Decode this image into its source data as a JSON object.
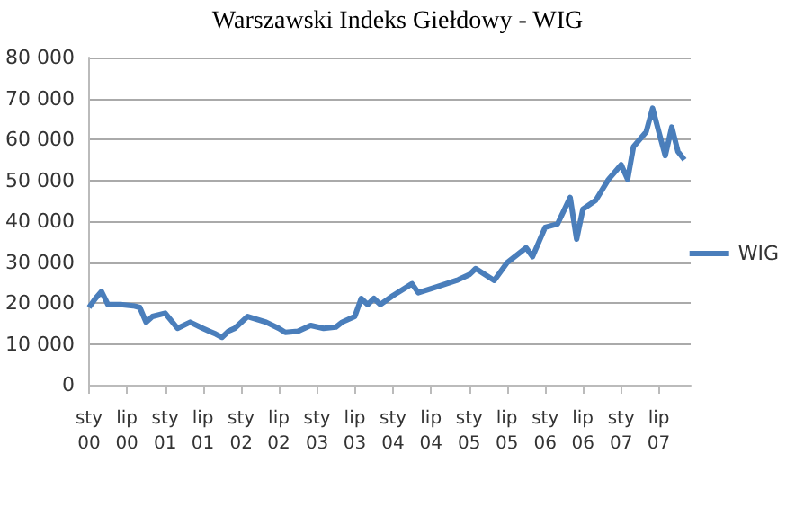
{
  "chart_data": {
    "type": "line",
    "title": "Warszawski Indeks Giełdowy - WIG",
    "series": [
      {
        "name": "WIG",
        "color": "#4a7ebb",
        "x": [
          "2000-01",
          "2000-02",
          "2000-03",
          "2000-04",
          "2000-06",
          "2000-08",
          "2000-09",
          "2000-10",
          "2000-11",
          "2001-01",
          "2001-03",
          "2001-05",
          "2001-07",
          "2001-08",
          "2001-09",
          "2001-10",
          "2001-11",
          "2001-12",
          "2002-02",
          "2002-05",
          "2002-07",
          "2002-08",
          "2002-10",
          "2002-12",
          "2003-02",
          "2003-04",
          "2003-05",
          "2003-07",
          "2003-08",
          "2003-09",
          "2003-10",
          "2003-11",
          "2004-01",
          "2004-04",
          "2004-05",
          "2004-08",
          "2004-11",
          "2005-01",
          "2005-02",
          "2005-05",
          "2005-07",
          "2005-10",
          "2005-11",
          "2006-01",
          "2006-03",
          "2006-05",
          "2006-06",
          "2006-07",
          "2006-09",
          "2006-11",
          "2007-01",
          "2007-02",
          "2007-03",
          "2007-05",
          "2007-06",
          "2007-07",
          "2007-08",
          "2007-09",
          "2007-10",
          "2007-11"
        ],
        "values": [
          18900,
          21100,
          22800,
          19600,
          19600,
          19300,
          18900,
          15300,
          16700,
          17500,
          13800,
          15300,
          13800,
          13100,
          12400,
          11600,
          13100,
          13800,
          16700,
          15300,
          13800,
          12800,
          13100,
          14500,
          13800,
          14100,
          15300,
          16700,
          21100,
          19600,
          21100,
          19600,
          21800,
          24700,
          22500,
          24000,
          25500,
          26900,
          28400,
          25500,
          29800,
          33500,
          31300,
          38500,
          39300,
          45800,
          35600,
          42900,
          45100,
          50200,
          53800,
          50200,
          58200,
          61800,
          67600,
          61800,
          56000,
          63000,
          57000,
          55000
        ]
      }
    ],
    "xlim": [
      "2000-01",
      "2007-12"
    ],
    "xticks": [
      {
        "value": "2000-01",
        "label": "sty 00"
      },
      {
        "value": "2000-07",
        "label": "lip 00"
      },
      {
        "value": "2001-01",
        "label": "sty 01"
      },
      {
        "value": "2001-07",
        "label": "lip 01"
      },
      {
        "value": "2002-01",
        "label": "sty 02"
      },
      {
        "value": "2002-07",
        "label": "lip 02"
      },
      {
        "value": "2003-01",
        "label": "sty 03"
      },
      {
        "value": "2003-07",
        "label": "lip 03"
      },
      {
        "value": "2004-01",
        "label": "sty 04"
      },
      {
        "value": "2004-07",
        "label": "lip 04"
      },
      {
        "value": "2005-01",
        "label": "sty 05"
      },
      {
        "value": "2005-07",
        "label": "lip 05"
      },
      {
        "value": "2006-01",
        "label": "sty 06"
      },
      {
        "value": "2006-07",
        "label": "lip 06"
      },
      {
        "value": "2007-01",
        "label": "sty 07"
      },
      {
        "value": "2007-07",
        "label": "lip 07"
      }
    ],
    "ylim": [
      0,
      80000
    ],
    "yticks": [
      0,
      {
        "value": 10000,
        "label": "10 000"
      },
      {
        "value": 20000,
        "label": "20 000"
      },
      {
        "value": 30000,
        "label": "30 000"
      },
      {
        "value": 40000,
        "label": "40 000"
      },
      {
        "value": 50000,
        "label": "50 000"
      },
      {
        "value": 60000,
        "label": "60 000"
      },
      {
        "value": 70000,
        "label": "70 000"
      },
      {
        "value": 80000,
        "label": "80 000"
      }
    ],
    "grid": "y",
    "legend": "right",
    "marker": "none",
    "line_style": "solid"
  }
}
